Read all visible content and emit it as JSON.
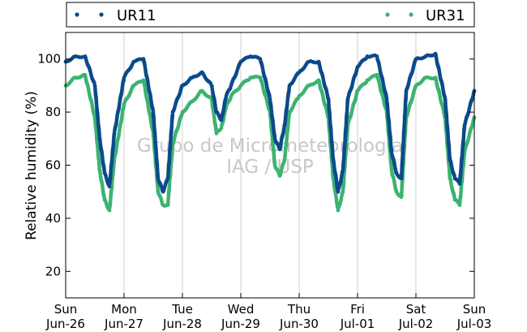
{
  "chart_data": {
    "type": "scatter",
    "title": "",
    "xlabel": "",
    "ylabel": "Relative humidity (%)",
    "ylim": [
      10,
      110
    ],
    "xlim": [
      "2011-06-26",
      "2011-07-03"
    ],
    "y_ticks": [
      20,
      40,
      60,
      80,
      100
    ],
    "x_ticks": [
      {
        "day": "Sun",
        "date": "Jun-26"
      },
      {
        "day": "Mon",
        "date": "Jun-27"
      },
      {
        "day": "Tue",
        "date": "Jun-28"
      },
      {
        "day": "Wed",
        "date": "Jun-29"
      },
      {
        "day": "Thu",
        "date": "Jun-30"
      },
      {
        "day": "Fri",
        "date": "Jul-01"
      },
      {
        "day": "Sat",
        "date": "Jul-02"
      },
      {
        "day": "Sun",
        "date": "Jul-03"
      }
    ],
    "grid": "vertical",
    "legend_placement": "top",
    "watermark": [
      "Grupo de Micrometeorologia",
      "IAG / USP"
    ],
    "series": [
      {
        "name": "UR11",
        "color": "#0b4a8a",
        "x": [
          "2011-06-26 00:00",
          "2011-06-26 04:00",
          "2011-06-26 08:00",
          "2011-06-26 12:00",
          "2011-06-26 14:00",
          "2011-06-26 16:00",
          "2011-06-26 18:00",
          "2011-06-26 20:00",
          "2011-06-27 00:00",
          "2011-06-27 04:00",
          "2011-06-27 08:00",
          "2011-06-27 12:00",
          "2011-06-27 14:00",
          "2011-06-27 16:00",
          "2011-06-27 18:00",
          "2011-06-27 20:00",
          "2011-06-28 00:00",
          "2011-06-28 04:00",
          "2011-06-28 08:00",
          "2011-06-28 12:00",
          "2011-06-28 14:00",
          "2011-06-28 16:00",
          "2011-06-28 18:00",
          "2011-06-28 20:00",
          "2011-06-29 00:00",
          "2011-06-29 04:00",
          "2011-06-29 08:00",
          "2011-06-29 12:00",
          "2011-06-29 14:00",
          "2011-06-29 16:00",
          "2011-06-29 18:00",
          "2011-06-29 20:00",
          "2011-06-30 00:00",
          "2011-06-30 04:00",
          "2011-06-30 08:00",
          "2011-06-30 12:00",
          "2011-06-30 14:00",
          "2011-06-30 16:00",
          "2011-06-30 18:00",
          "2011-06-30 20:00",
          "2011-07-01 00:00",
          "2011-07-01 04:00",
          "2011-07-01 08:00",
          "2011-07-01 12:00",
          "2011-07-01 14:00",
          "2011-07-01 16:00",
          "2011-07-01 18:00",
          "2011-07-01 20:00",
          "2011-07-02 00:00",
          "2011-07-02 04:00",
          "2011-07-02 08:00",
          "2011-07-02 12:00",
          "2011-07-02 14:00",
          "2011-07-02 16:00",
          "2011-07-02 18:00",
          "2011-07-02 20:00",
          "2011-07-03 00:00"
        ],
        "y": [
          99,
          101,
          101,
          90,
          70,
          57,
          52,
          72,
          93,
          99,
          100,
          80,
          55,
          50,
          55,
          80,
          90,
          93,
          95,
          90,
          80,
          77,
          86,
          90,
          99,
          101,
          100,
          85,
          70,
          66,
          75,
          90,
          95,
          99,
          99,
          85,
          62,
          50,
          58,
          85,
          97,
          101,
          101,
          85,
          65,
          57,
          55,
          88,
          100,
          101,
          102,
          85,
          62,
          55,
          53,
          75,
          88
        ]
      },
      {
        "name": "UR31",
        "color": "#3cb371",
        "x": [
          "2011-06-26 00:00",
          "2011-06-26 04:00",
          "2011-06-26 08:00",
          "2011-06-26 12:00",
          "2011-06-26 14:00",
          "2011-06-26 16:00",
          "2011-06-26 18:00",
          "2011-06-26 20:00",
          "2011-06-27 00:00",
          "2011-06-27 04:00",
          "2011-06-27 08:00",
          "2011-06-27 12:00",
          "2011-06-27 14:00",
          "2011-06-27 16:00",
          "2011-06-27 18:00",
          "2011-06-27 20:00",
          "2011-06-28 00:00",
          "2011-06-28 04:00",
          "2011-06-28 08:00",
          "2011-06-28 12:00",
          "2011-06-28 14:00",
          "2011-06-28 16:00",
          "2011-06-28 18:00",
          "2011-06-28 20:00",
          "2011-06-29 00:00",
          "2011-06-29 04:00",
          "2011-06-29 08:00",
          "2011-06-29 12:00",
          "2011-06-29 14:00",
          "2011-06-29 16:00",
          "2011-06-29 18:00",
          "2011-06-29 20:00",
          "2011-06-30 00:00",
          "2011-06-30 04:00",
          "2011-06-30 08:00",
          "2011-06-30 12:00",
          "2011-06-30 14:00",
          "2011-06-30 16:00",
          "2011-06-30 18:00",
          "2011-06-30 20:00",
          "2011-07-01 00:00",
          "2011-07-01 04:00",
          "2011-07-01 08:00",
          "2011-07-01 12:00",
          "2011-07-01 14:00",
          "2011-07-01 16:00",
          "2011-07-01 18:00",
          "2011-07-01 20:00",
          "2011-07-02 00:00",
          "2011-07-02 04:00",
          "2011-07-02 08:00",
          "2011-07-02 12:00",
          "2011-07-02 14:00",
          "2011-07-02 16:00",
          "2011-07-02 18:00",
          "2011-07-02 20:00",
          "2011-07-03 00:00"
        ],
        "y": [
          90,
          93,
          94,
          78,
          58,
          47,
          43,
          62,
          83,
          90,
          92,
          72,
          50,
          45,
          45,
          68,
          80,
          84,
          88,
          85,
          72,
          74,
          82,
          86,
          90,
          93,
          93,
          80,
          60,
          56,
          62,
          80,
          86,
          90,
          92,
          78,
          55,
          43,
          50,
          75,
          88,
          92,
          94,
          80,
          58,
          50,
          48,
          78,
          90,
          93,
          93,
          78,
          55,
          47,
          45,
          65,
          78
        ]
      }
    ]
  }
}
